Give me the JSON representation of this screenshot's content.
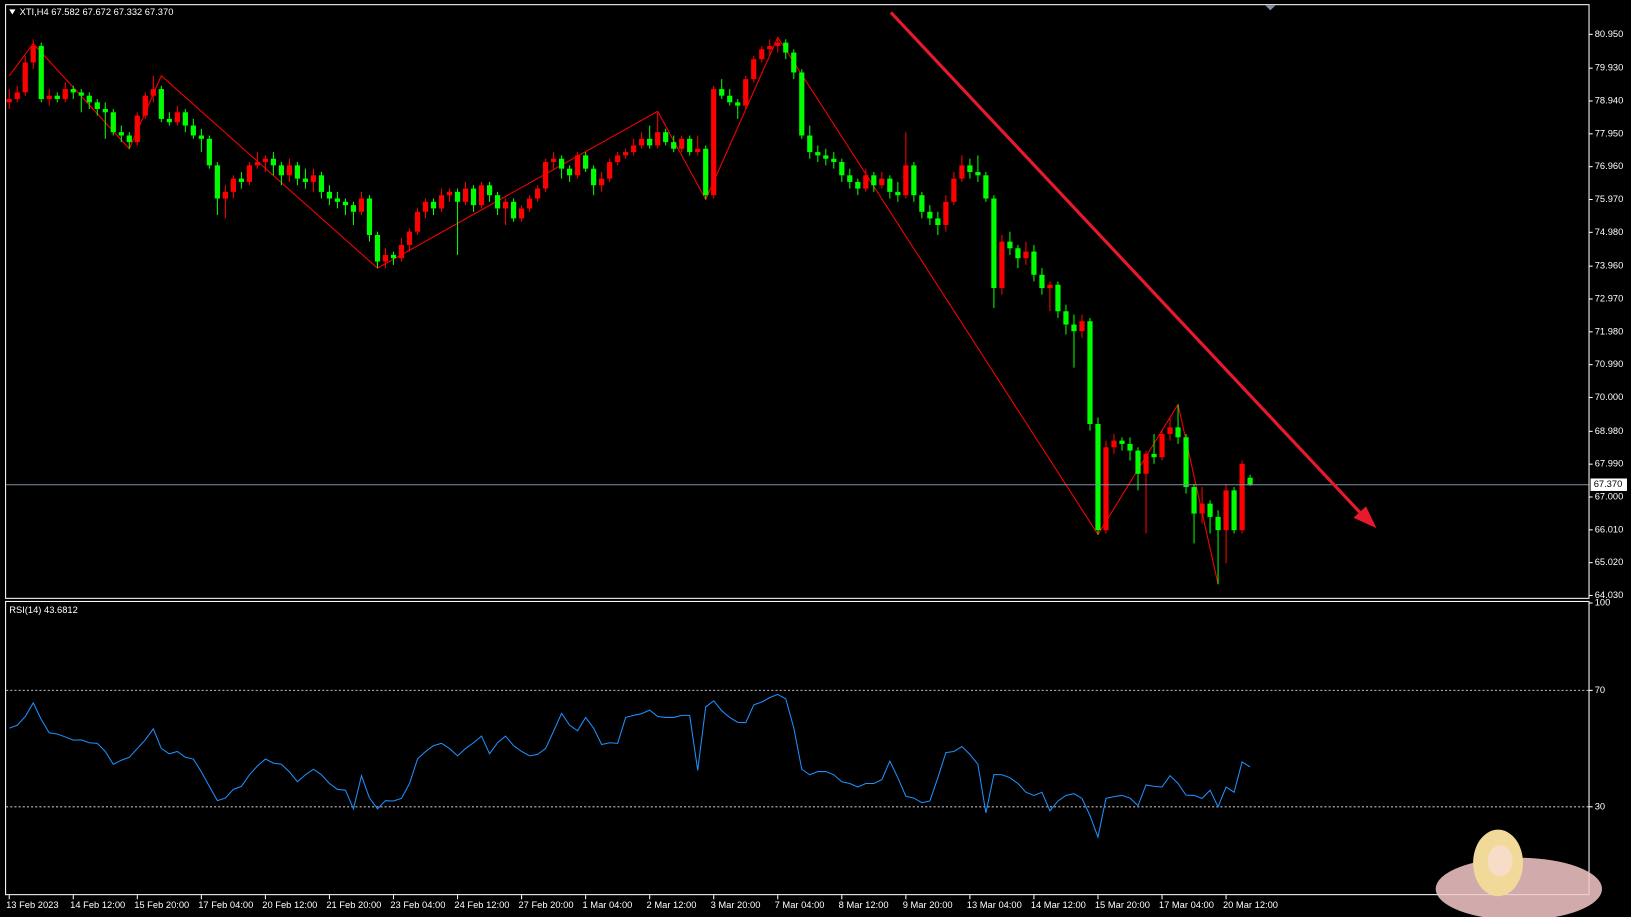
{
  "chart_data": [
    {
      "type": "candlestick",
      "title": "XTI,H4  67.582 67.672 67.332 67.370",
      "up_color": "#ff0000",
      "down_color": "#00ff00",
      "categories": [
        "13 Feb 2023",
        null,
        null,
        null,
        null,
        null,
        null,
        null,
        "14 Feb 12:00",
        null,
        null,
        null,
        null,
        null,
        null,
        null,
        "15 Feb 20:00",
        null,
        null,
        null,
        null,
        null,
        null,
        null,
        "17 Feb 04:00",
        null,
        null,
        null,
        null,
        null,
        null,
        null,
        "20 Feb 12:00",
        null,
        null,
        null,
        null,
        null,
        null,
        null,
        "21 Feb 20:00",
        null,
        null,
        null,
        null,
        null,
        null,
        null,
        "23 Feb 04:00",
        null,
        null,
        null,
        null,
        null,
        null,
        null,
        "24 Feb 12:00",
        null,
        null,
        null,
        null,
        null,
        null,
        null,
        "27 Feb 20:00",
        null,
        null,
        null,
        null,
        null,
        null,
        null,
        "1 Mar 04:00",
        null,
        null,
        null,
        null,
        null,
        null,
        null,
        "2 Mar 12:00",
        null,
        null,
        null,
        null,
        null,
        null,
        null,
        "3 Mar 20:00",
        null,
        null,
        null,
        null,
        null,
        null,
        null,
        "7 Mar 04:00",
        null,
        null,
        null,
        null,
        null,
        null,
        null,
        "8 Mar 12:00",
        null,
        null,
        null,
        null,
        null,
        null,
        null,
        "9 Mar 20:00",
        null,
        null,
        null,
        null,
        null,
        null,
        null,
        "13 Mar 04:00",
        null,
        null,
        null,
        null,
        null,
        null,
        null,
        "14 Mar 12:00",
        null,
        null,
        null,
        null,
        null,
        null,
        null,
        "15 Mar 20:00",
        null,
        null,
        null,
        null,
        null,
        null,
        null,
        "17 Mar 04:00",
        null,
        null,
        null,
        null,
        null,
        null,
        null,
        "20 Mar 12:00",
        null,
        null,
        null
      ],
      "candles": [
        [
          78.9,
          79.3,
          78.7,
          79.0
        ],
        [
          79.0,
          79.4,
          78.9,
          79.2
        ],
        [
          79.2,
          80.3,
          79.1,
          80.1
        ],
        [
          80.1,
          80.8,
          79.9,
          80.6
        ],
        [
          80.6,
          80.7,
          78.9,
          79.0
        ],
        [
          79.0,
          79.3,
          78.8,
          79.1
        ],
        [
          79.1,
          79.2,
          78.9,
          79.0
        ],
        [
          79.0,
          79.5,
          78.9,
          79.3
        ],
        [
          79.3,
          79.4,
          79.0,
          79.2
        ],
        [
          79.2,
          79.3,
          78.6,
          79.1
        ],
        [
          79.1,
          79.2,
          78.7,
          78.9
        ],
        [
          78.9,
          79.0,
          78.5,
          78.7
        ],
        [
          78.7,
          78.9,
          77.8,
          78.6
        ],
        [
          78.6,
          78.7,
          77.9,
          78.0
        ],
        [
          78.0,
          78.2,
          77.7,
          77.9
        ],
        [
          77.9,
          78.0,
          77.5,
          77.7
        ],
        [
          77.7,
          78.6,
          77.6,
          78.5
        ],
        [
          78.5,
          79.2,
          78.4,
          79.1
        ],
        [
          79.1,
          79.7,
          78.9,
          79.3
        ],
        [
          79.3,
          79.4,
          78.3,
          78.4
        ],
        [
          78.4,
          78.6,
          78.2,
          78.3
        ],
        [
          78.3,
          78.8,
          78.2,
          78.6
        ],
        [
          78.6,
          78.7,
          78.0,
          78.2
        ],
        [
          78.2,
          78.4,
          77.8,
          77.9
        ],
        [
          77.9,
          78.1,
          77.4,
          77.8
        ],
        [
          77.8,
          77.9,
          76.9,
          77.0
        ],
        [
          77.0,
          77.1,
          75.5,
          76.0
        ],
        [
          76.0,
          76.4,
          75.4,
          76.2
        ],
        [
          76.2,
          76.7,
          76.0,
          76.6
        ],
        [
          76.6,
          76.8,
          76.3,
          76.5
        ],
        [
          76.5,
          77.1,
          76.4,
          77.0
        ],
        [
          77.0,
          77.4,
          76.9,
          77.1
        ],
        [
          77.1,
          77.3,
          76.8,
          77.2
        ],
        [
          77.2,
          77.4,
          76.7,
          77.0
        ],
        [
          77.0,
          77.1,
          76.4,
          76.7
        ],
        [
          76.7,
          77.2,
          76.5,
          77.0
        ],
        [
          77.0,
          77.1,
          76.4,
          76.6
        ],
        [
          76.6,
          76.9,
          76.3,
          76.5
        ],
        [
          76.5,
          76.9,
          76.2,
          76.7
        ],
        [
          76.7,
          76.8,
          76.0,
          76.2
        ],
        [
          76.2,
          76.4,
          75.8,
          76.0
        ],
        [
          76.0,
          76.2,
          75.7,
          75.9
        ],
        [
          75.9,
          76.0,
          75.5,
          75.8
        ],
        [
          75.8,
          75.9,
          75.2,
          75.6
        ],
        [
          75.6,
          76.2,
          75.5,
          76.0
        ],
        [
          76.0,
          76.1,
          74.7,
          74.9
        ],
        [
          74.9,
          75.0,
          73.9,
          74.1
        ],
        [
          74.1,
          74.5,
          73.9,
          74.3
        ],
        [
          74.3,
          74.4,
          74.0,
          74.2
        ],
        [
          74.2,
          74.8,
          74.1,
          74.6
        ],
        [
          74.6,
          75.1,
          74.4,
          75.0
        ],
        [
          75.0,
          75.7,
          74.9,
          75.6
        ],
        [
          75.6,
          76.0,
          75.4,
          75.9
        ],
        [
          75.9,
          76.0,
          75.5,
          75.7
        ],
        [
          75.7,
          76.3,
          75.6,
          76.1
        ],
        [
          76.1,
          76.3,
          75.9,
          76.2
        ],
        [
          76.2,
          76.3,
          74.3,
          75.9
        ],
        [
          75.9,
          76.5,
          75.8,
          76.3
        ],
        [
          76.3,
          76.4,
          75.6,
          75.8
        ],
        [
          75.8,
          76.5,
          75.7,
          76.4
        ],
        [
          76.4,
          76.5,
          75.9,
          76.1
        ],
        [
          76.1,
          76.2,
          75.5,
          75.7
        ],
        [
          75.7,
          76.0,
          75.2,
          75.9
        ],
        [
          75.9,
          76.0,
          75.3,
          75.4
        ],
        [
          75.4,
          75.8,
          75.3,
          75.7
        ],
        [
          75.7,
          76.1,
          75.6,
          76.0
        ],
        [
          76.0,
          76.4,
          75.9,
          76.3
        ],
        [
          76.3,
          77.2,
          76.2,
          77.1
        ],
        [
          77.1,
          77.4,
          76.9,
          77.2
        ],
        [
          77.2,
          77.3,
          76.6,
          76.9
        ],
        [
          76.9,
          77.0,
          76.5,
          76.7
        ],
        [
          76.7,
          77.4,
          76.6,
          77.3
        ],
        [
          77.3,
          77.4,
          76.8,
          76.9
        ],
        [
          76.9,
          77.0,
          76.1,
          76.4
        ],
        [
          76.4,
          76.8,
          76.2,
          76.6
        ],
        [
          76.6,
          77.2,
          76.5,
          77.1
        ],
        [
          77.1,
          77.4,
          77.0,
          77.3
        ],
        [
          77.3,
          77.5,
          77.2,
          77.4
        ],
        [
          77.4,
          77.8,
          77.3,
          77.6
        ],
        [
          77.6,
          78.0,
          77.5,
          77.8
        ],
        [
          77.8,
          78.2,
          77.5,
          77.6
        ],
        [
          77.6,
          78.6,
          77.5,
          78.0
        ],
        [
          78.0,
          78.1,
          77.6,
          77.7
        ],
        [
          77.7,
          77.9,
          77.4,
          77.5
        ],
        [
          77.5,
          77.9,
          77.4,
          77.8
        ],
        [
          77.8,
          77.9,
          77.3,
          77.4
        ],
        [
          77.4,
          77.9,
          77.3,
          77.5
        ],
        [
          77.5,
          77.6,
          75.97,
          76.1
        ],
        [
          76.1,
          79.4,
          76.0,
          79.3
        ],
        [
          79.3,
          79.6,
          79.0,
          79.1
        ],
        [
          79.1,
          79.3,
          78.8,
          78.9
        ],
        [
          78.9,
          79.0,
          78.4,
          78.8
        ],
        [
          78.8,
          79.7,
          78.7,
          79.6
        ],
        [
          79.6,
          80.3,
          79.5,
          80.2
        ],
        [
          80.2,
          80.6,
          80.1,
          80.5
        ],
        [
          80.5,
          80.8,
          80.3,
          80.6
        ],
        [
          80.6,
          80.86,
          80.4,
          80.7
        ],
        [
          80.7,
          80.8,
          80.2,
          80.4
        ],
        [
          80.4,
          80.5,
          79.6,
          79.8
        ],
        [
          79.8,
          79.9,
          77.8,
          77.9
        ],
        [
          77.9,
          78.2,
          77.2,
          77.4
        ],
        [
          77.4,
          77.6,
          77.1,
          77.3
        ],
        [
          77.3,
          77.5,
          77.0,
          77.2
        ],
        [
          77.2,
          77.4,
          76.9,
          77.1
        ],
        [
          77.1,
          77.2,
          76.5,
          76.7
        ],
        [
          76.7,
          76.9,
          76.3,
          76.5
        ],
        [
          76.5,
          76.6,
          76.1,
          76.3
        ],
        [
          76.3,
          76.9,
          76.2,
          76.7
        ],
        [
          76.7,
          76.8,
          76.2,
          76.4
        ],
        [
          76.4,
          76.8,
          76.3,
          76.6
        ],
        [
          76.6,
          76.7,
          76.0,
          76.2
        ],
        [
          76.2,
          76.5,
          75.9,
          76.1
        ],
        [
          76.1,
          78.0,
          76.0,
          77.0
        ],
        [
          77.0,
          77.1,
          75.9,
          76.1
        ],
        [
          76.1,
          76.2,
          75.4,
          75.6
        ],
        [
          75.6,
          75.8,
          75.2,
          75.4
        ],
        [
          75.4,
          75.6,
          74.9,
          75.2
        ],
        [
          75.2,
          76.1,
          75.0,
          75.9
        ],
        [
          75.9,
          76.8,
          75.8,
          76.6
        ],
        [
          76.6,
          77.3,
          76.5,
          77.0
        ],
        [
          77.0,
          77.2,
          76.6,
          76.8
        ],
        [
          76.8,
          77.3,
          76.5,
          76.7
        ],
        [
          76.7,
          76.8,
          75.9,
          76.0
        ],
        [
          76.0,
          76.1,
          72.7,
          73.3
        ],
        [
          73.3,
          74.9,
          73.1,
          74.7
        ],
        [
          74.7,
          75.0,
          74.3,
          74.5
        ],
        [
          74.5,
          74.6,
          73.9,
          74.2
        ],
        [
          74.2,
          74.7,
          74.0,
          74.4
        ],
        [
          74.4,
          74.6,
          73.5,
          73.7
        ],
        [
          73.7,
          73.9,
          73.1,
          73.3
        ],
        [
          73.3,
          73.5,
          72.6,
          73.4
        ],
        [
          73.4,
          73.5,
          72.4,
          72.6
        ],
        [
          72.6,
          72.8,
          71.9,
          72.2
        ],
        [
          72.2,
          72.5,
          70.9,
          72.0
        ],
        [
          72.0,
          72.5,
          71.8,
          72.3
        ],
        [
          72.3,
          72.4,
          69.0,
          69.2
        ],
        [
          69.2,
          69.4,
          65.87,
          66.0
        ],
        [
          66.0,
          68.7,
          65.9,
          68.5
        ],
        [
          68.5,
          68.9,
          68.3,
          68.7
        ],
        [
          68.7,
          68.8,
          68.4,
          68.6
        ],
        [
          68.6,
          68.8,
          68.1,
          68.4
        ],
        [
          68.4,
          68.5,
          67.2,
          67.7
        ],
        [
          67.7,
          68.4,
          65.9,
          68.3
        ],
        [
          68.3,
          68.9,
          68.0,
          68.2
        ],
        [
          68.2,
          69.0,
          68.1,
          68.9
        ],
        [
          68.9,
          69.4,
          68.7,
          69.1
        ],
        [
          69.1,
          69.79,
          68.6,
          68.8
        ],
        [
          68.8,
          68.9,
          67.1,
          67.3
        ],
        [
          67.3,
          67.4,
          65.6,
          66.5
        ],
        [
          66.5,
          67.3,
          66.2,
          66.8
        ],
        [
          66.8,
          66.9,
          65.9,
          66.4
        ],
        [
          66.4,
          66.6,
          64.37,
          66.0
        ],
        [
          66.0,
          67.4,
          65.0,
          67.2
        ],
        [
          67.2,
          67.3,
          65.9,
          66.0
        ],
        [
          66.0,
          68.1,
          65.9,
          68.0
        ],
        [
          67.582,
          67.672,
          67.332,
          67.37
        ]
      ],
      "ylim": [
        63.96,
        81.86
      ],
      "yticks": [
        {
          "value": 80.95,
          "label": "80.950"
        },
        {
          "value": 79.93,
          "label": "79.930"
        },
        {
          "value": 78.94,
          "label": "78.940"
        },
        {
          "value": 77.95,
          "label": "77.950"
        },
        {
          "value": 76.96,
          "label": "76.960"
        },
        {
          "value": 75.97,
          "label": "75.970"
        },
        {
          "value": 74.98,
          "label": "74.980"
        },
        {
          "value": 73.96,
          "label": "73.960"
        },
        {
          "value": 72.97,
          "label": "72.970"
        },
        {
          "value": 71.98,
          "label": "71.980"
        },
        {
          "value": 70.99,
          "label": "70.990"
        },
        {
          "value": 70,
          "label": "70.000"
        },
        {
          "value": 68.98,
          "label": "68.980"
        },
        {
          "value": 67.99,
          "label": "67.990"
        },
        {
          "value": 67,
          "label": "67.000"
        },
        {
          "value": 66.01,
          "label": "66.010"
        },
        {
          "value": 65.02,
          "label": "65.020"
        },
        {
          "value": 64.03,
          "label": "64.030"
        }
      ],
      "last_price": {
        "value": 67.37,
        "label": "67.370"
      },
      "zigzag": {
        "color": "#ff0000",
        "x": [
          0,
          3,
          15,
          19,
          46,
          81,
          87,
          96,
          136,
          146,
          151
        ],
        "values": [
          79.7,
          80.67,
          77.5,
          79.7,
          73.9,
          78.63,
          75.97,
          80.86,
          65.87,
          69.79,
          64.37
        ]
      }
    },
    {
      "type": "line",
      "title": "RSI(14) 43.6812",
      "color": "#1e90ff",
      "values": [
        57,
        58,
        61,
        65.7,
        60,
        55.4,
        55,
        54,
        52.9,
        53,
        52,
        51.8,
        49,
        44.6,
        46,
        47,
        50,
        53,
        56.8,
        50,
        48.2,
        49,
        47,
        46.4,
        42,
        37,
        32.1,
        33,
        36,
        37,
        41,
        44,
        46.4,
        45,
        44.6,
        42,
        38.6,
        41,
        42.9,
        41,
        38,
        36,
        35.7,
        29.3,
        40.7,
        33,
        29.3,
        32.1,
        32,
        32.9,
        38,
        46.4,
        49,
        51,
        51.8,
        50,
        47.5,
        50,
        52,
        54.3,
        48.2,
        52,
        54.3,
        51,
        49,
        47.5,
        48,
        50,
        56,
        62.1,
        58,
        56.1,
        60.7,
        57,
        51.4,
        52,
        51.8,
        60.7,
        61.4,
        62,
        63.2,
        61,
        60.7,
        60.7,
        61.4,
        61.4,
        42.5,
        64.3,
        66.4,
        63,
        60.7,
        59,
        58.9,
        65,
        66,
        67.5,
        68.6,
        67.1,
        57.1,
        42.9,
        41,
        42.1,
        42.1,
        41,
        38.6,
        38,
        36.8,
        38,
        38,
        39.3,
        45.7,
        40,
        33.6,
        33,
        31.4,
        32,
        40,
        48.6,
        49,
        50.7,
        48,
        44.6,
        27.9,
        41.1,
        41,
        40,
        38,
        35,
        33.9,
        35,
        28.6,
        32,
        33.9,
        34.5,
        32.9,
        27,
        19.6,
        32.9,
        33.5,
        33.9,
        33,
        30.4,
        37.5,
        37,
        36.8,
        40.7,
        38,
        34,
        33.9,
        32.9,
        35.7,
        30,
        36.8,
        35,
        45.4,
        43.68
      ],
      "ylim": [
        0,
        100
      ],
      "yticks": [
        30,
        70,
        100
      ],
      "levels": [
        70,
        30
      ]
    }
  ]
}
